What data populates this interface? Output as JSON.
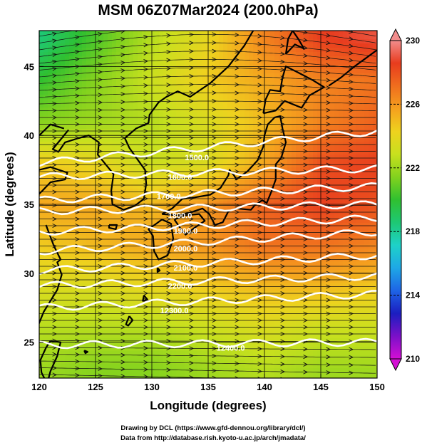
{
  "chart_data": {
    "type": "heatmap",
    "title": "MSM 06Z07Mar2024 (200.0hPa)",
    "xlabel": "Longitude (degrees)",
    "ylabel": "Latitude  (degrees)",
    "xlim": [
      120,
      150
    ],
    "ylim": [
      22.4,
      47.6
    ],
    "x_ticks": [
      120,
      125,
      130,
      135,
      140,
      145,
      150
    ],
    "y_ticks": [
      25,
      30,
      35,
      40,
      45
    ],
    "x_tick_labels": [
      "120",
      "125",
      "130",
      "135",
      "140",
      "145",
      "150"
    ],
    "y_tick_labels": [
      "25",
      "30",
      "35",
      "40",
      "45"
    ],
    "colorbar": {
      "range": [
        210,
        230
      ],
      "ticks": [
        210,
        214,
        218,
        222,
        226,
        230
      ],
      "tick_labels": [
        "210",
        "214",
        "218",
        "222",
        "226",
        "230"
      ],
      "colors": [
        "#d40fd4",
        "#7b10c8",
        "#1b1ec0",
        "#1e64e6",
        "#1ea8e6",
        "#1ed2c8",
        "#1ec873",
        "#30c030",
        "#82d21e",
        "#c8e01e",
        "#eed21e",
        "#f5a01e",
        "#f06e1e",
        "#e83c1e",
        "#f28c8c"
      ]
    },
    "temperature_field_K": {
      "lat": [
        47,
        44,
        41,
        38,
        35,
        32,
        29,
        26,
        23
      ],
      "lon": [
        120,
        125,
        130,
        135,
        140,
        145,
        150
      ],
      "values": [
        [
          218.5,
          220.5,
          222.5,
          224.0,
          226.5,
          228.5,
          229.0
        ],
        [
          220.0,
          221.5,
          223.0,
          224.5,
          225.5,
          226.5,
          227.0
        ],
        [
          221.5,
          222.0,
          222.5,
          223.5,
          225.0,
          226.5,
          227.5
        ],
        [
          224.5,
          224.0,
          223.0,
          223.5,
          225.5,
          228.0,
          228.5
        ],
        [
          225.5,
          225.5,
          225.0,
          226.0,
          227.5,
          228.5,
          228.0
        ],
        [
          224.5,
          225.0,
          225.5,
          226.0,
          227.0,
          227.0,
          226.5
        ],
        [
          223.5,
          223.5,
          224.0,
          224.5,
          225.0,
          225.0,
          224.5
        ],
        [
          222.5,
          222.5,
          222.5,
          223.0,
          223.5,
          223.0,
          223.0
        ],
        [
          222.0,
          221.5,
          221.5,
          222.0,
          222.5,
          222.0,
          222.0
        ]
      ]
    },
    "height_contours": [
      {
        "label": "11500.0",
        "lat_w": 38.0,
        "lat_e": 40.3,
        "label_lon": 134.0,
        "label_lat": 38.4,
        "visible_label": "1500.0"
      },
      {
        "label": "11600.0",
        "lat_w": 37.0,
        "lat_e": 37.6,
        "label_lon": 132.5,
        "label_lat": 37.0,
        "visible_label": "1600.0"
      },
      {
        "label": "11700.0",
        "lat_w": 35.3,
        "lat_e": 36.3,
        "label_lon": 131.5,
        "label_lat": 35.6,
        "visible_label": "1700.0"
      },
      {
        "label": "11800.0",
        "lat_w": 34.5,
        "lat_e": 35.0,
        "label_lon": 132.5,
        "label_lat": 34.2,
        "visible_label": "1800.0"
      },
      {
        "label": "11900.0",
        "lat_w": 33.0,
        "lat_e": 34.0,
        "label_lon": 133.0,
        "label_lat": 33.1,
        "visible_label": "1900.0"
      },
      {
        "label": "12000.0",
        "lat_w": 31.6,
        "lat_e": 33.0,
        "label_lon": 133.0,
        "label_lat": 31.8,
        "visible_label": "2000.0"
      },
      {
        "label": "12100.0",
        "lat_w": 30.2,
        "lat_e": 31.3,
        "label_lon": 133.0,
        "label_lat": 30.4,
        "visible_label": "2100.0"
      },
      {
        "label": "12200.0",
        "lat_w": 29.1,
        "lat_e": 29.8,
        "label_lon": 132.5,
        "label_lat": 29.1,
        "visible_label": "2200.0"
      },
      {
        "label": "12300.0",
        "lat_w": 27.5,
        "lat_e": 28.5,
        "label_lon": 132.0,
        "label_lat": 27.3,
        "visible_label": "12300.0"
      },
      {
        "label": "12400.0",
        "lat_w": 24.8,
        "lat_e": 25.0,
        "label_lon": 137.0,
        "label_lat": 24.6,
        "visible_label": "12400.0"
      }
    ],
    "wind_vectors": "eastward (westerly) flow over the whole domain, with northward curvature over the NW corner and weak south-east drift near 23N",
    "grid": true
  },
  "credits": {
    "line1": "Drawing by DCL (https://www.gfd-dennou.org/library/dcl/)",
    "line2": "Data from http://database.rish.kyoto-u.ac.jp/arch/jmadata/"
  }
}
